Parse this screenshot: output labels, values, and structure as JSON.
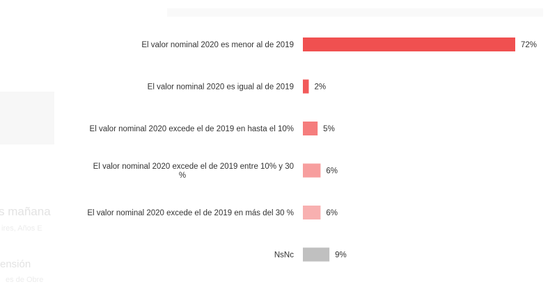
{
  "chart_data": {
    "type": "bar",
    "orientation": "horizontal",
    "title": "",
    "xlabel": "",
    "ylabel": "",
    "xlim": [
      0,
      72
    ],
    "grid": false,
    "legend": "none",
    "unit": "%",
    "categories": [
      [
        "El valor nominal 2020 es menor al de 2019"
      ],
      [
        "El valor nominal 2020 es igual al de 2019"
      ],
      [
        "El valor nominal 2020 excede el de 2019 en hasta el 10%"
      ],
      [
        "El valor nominal 2020 excede el de 2019 entre 10% y 30",
        "%"
      ],
      [
        "El valor nominal 2020 excede el de 2019 en más del 30 %"
      ],
      [
        "NsNc"
      ]
    ],
    "values": [
      72,
      2,
      5,
      6,
      6,
      9
    ],
    "value_labels": [
      "72%",
      "2%",
      "5%",
      "6%",
      "6%",
      "9%"
    ],
    "colors": [
      "#f05050",
      "#f25a5a",
      "#f57d7d",
      "#f79e9e",
      "#f8b0b0",
      "#c0c0c0"
    ]
  },
  "background": {
    "ghost_line_1": "s mañana",
    "ghost_line_2": "ires, Años E",
    "ghost_line_3": "ensión",
    "ghost_line_4": "es de Obre"
  }
}
